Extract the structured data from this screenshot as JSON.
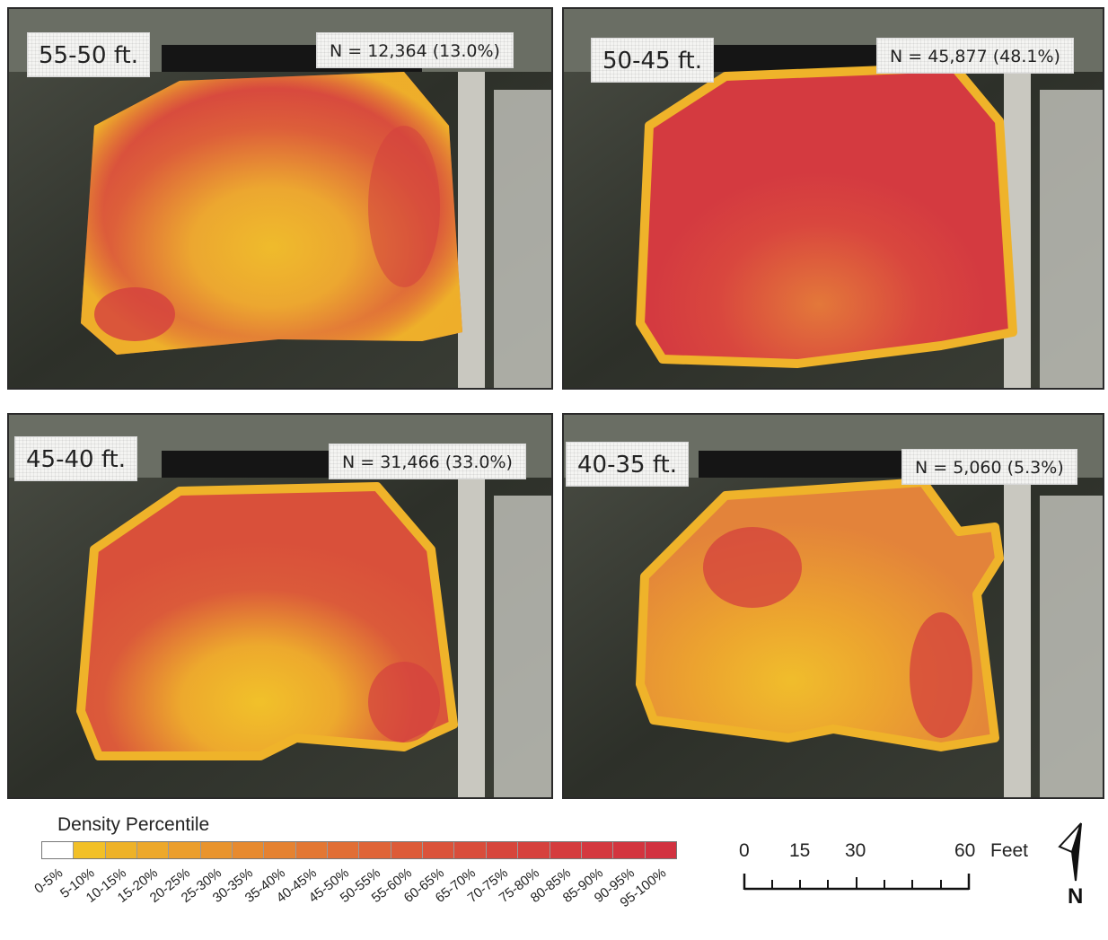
{
  "panels": [
    {
      "depth": "55-50 ft.",
      "count": "N = 12,364 (13.0%)"
    },
    {
      "depth": "50-45 ft.",
      "count": "N = 45,877 (48.1%)"
    },
    {
      "depth": "45-40 ft.",
      "count": "N = 31,466 (33.0%)"
    },
    {
      "depth": "40-35 ft.",
      "count": "N = 5,060 (5.3%)"
    }
  ],
  "legend": {
    "title": "Density Percentile",
    "classes": [
      "0-5%",
      "5-10%",
      "10-15%",
      "15-20%",
      "20-25%",
      "25-30%",
      "30-35%",
      "35-40%",
      "40-45%",
      "45-50%",
      "50-55%",
      "55-60%",
      "60-65%",
      "65-70%",
      "70-75%",
      "75-80%",
      "80-85%",
      "85-90%",
      "90-95%",
      "95-100%"
    ],
    "colors": [
      "#ffffff",
      "#f2c027",
      "#eeb228",
      "#eda82a",
      "#eb9e2c",
      "#e9942d",
      "#e78a2f",
      "#e58231",
      "#e37733",
      "#e16e35",
      "#df6437",
      "#dd5b38",
      "#db533a",
      "#d94d3b",
      "#d7463c",
      "#d6413d",
      "#d53c3e",
      "#d4383f",
      "#d3353f",
      "#d23240"
    ]
  },
  "scale_bar": {
    "labels": [
      "0",
      "15",
      "30",
      "60"
    ],
    "unit": "Feet"
  },
  "north_arrow": {
    "label": "N",
    "icon": "north-arrow-icon"
  }
}
